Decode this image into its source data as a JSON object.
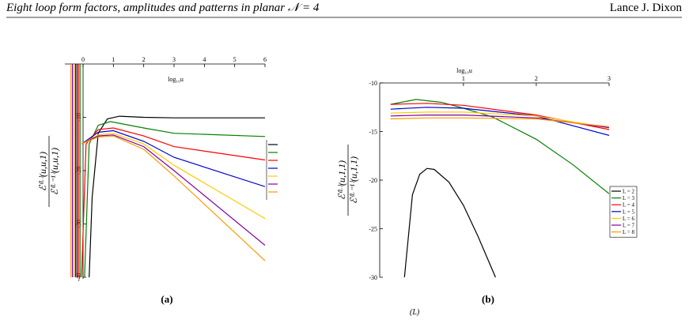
{
  "header": {
    "title": "Eight loop form factors, amplitudes and patterns in planar 𝒩 = 4",
    "author": "Lance J. Dixon"
  },
  "chart_data": [
    {
      "type": "line",
      "panel_label": "(a)",
      "xlabel": "log₁₀u",
      "ylabel": {
        "numerator": "ℰ⁽ᴸ⁾(u,u,1)",
        "denominator": "ℰ⁽ᴸ⁻¹⁾(u,u,1)"
      },
      "xlim": [
        -0.6,
        6
      ],
      "ylim": [
        -40.3,
        0
      ],
      "xticks": [
        0,
        1,
        2,
        3,
        4,
        5,
        6
      ],
      "yticks": [
        -10,
        -20,
        -30,
        -40
      ],
      "series": [
        {
          "color": "#000000",
          "x": [
            -0.2,
            -0.2,
            null,
            0.2,
            0.3,
            0.5,
            0.8,
            1.2,
            2,
            3,
            6
          ],
          "values": [
            0,
            -40,
            null,
            -40,
            -25,
            -13,
            -10.3,
            -9.8,
            -10.0,
            -10.1,
            -10.1
          ]
        },
        {
          "color": "#008000",
          "x": [
            -0.1,
            -0.1,
            null,
            0.05,
            0.2,
            0.5,
            0.9,
            2,
            3,
            6
          ],
          "values": [
            0,
            -40,
            null,
            -40,
            -15,
            -11.5,
            -10.8,
            -12.0,
            -13.0,
            -13.6
          ]
        },
        {
          "color": "#ff0000",
          "x": [
            -0.15,
            -0.15,
            null,
            -0.05,
            0.1,
            0.5,
            1,
            2,
            3,
            6
          ],
          "values": [
            0,
            -40,
            null,
            -40,
            -15,
            -12.3,
            -12.0,
            -13.5,
            -15.5,
            -18.0
          ]
        },
        {
          "color": "#0000cc",
          "x": [
            -0.25,
            -0.25,
            null,
            -0.05,
            0.5,
            1,
            2,
            3,
            6
          ],
          "values": [
            0,
            -40,
            null,
            -15,
            -12.8,
            -12.5,
            -14.5,
            -17.5,
            -23.0
          ]
        },
        {
          "color": "#ffcc00",
          "x": [
            -0.3,
            -0.3,
            null,
            -0.05,
            0.5,
            1,
            2,
            3,
            6
          ],
          "values": [
            0,
            -40,
            null,
            -15,
            -13.3,
            -13.0,
            -15.0,
            -19.0,
            -29.0
          ]
        },
        {
          "color": "#8000a0",
          "x": [
            -0.35,
            -0.35,
            null,
            -0.05,
            0.5,
            1,
            2,
            3,
            6
          ],
          "values": [
            0,
            -40,
            null,
            -15,
            -13.5,
            -13.3,
            -15.5,
            -20.0,
            -34.0
          ]
        },
        {
          "color": "#ff9900",
          "x": [
            -0.4,
            -0.4,
            null,
            -0.05,
            0.5,
            1,
            2,
            3,
            6
          ],
          "values": [
            0,
            -40,
            null,
            -15,
            -13.7,
            -13.5,
            -16.0,
            -21.0,
            -36.9
          ]
        }
      ]
    },
    {
      "type": "line",
      "panel_label": "(b)",
      "xlabel": "log₁₀u",
      "ylabel": {
        "numerator": "ℰ⁽ᴸ⁾(u,1,1)",
        "denominator": "ℰ⁽ᴸ⁻¹⁾(u,1,1)"
      },
      "xlim": [
        -0.15,
        3
      ],
      "ylim": [
        -30,
        -10
      ],
      "xticks": [
        1,
        2,
        3
      ],
      "yticks": [
        -10,
        -15,
        -20,
        -25,
        -30
      ],
      "series": [
        {
          "name": "L = 2",
          "color": "#000000",
          "x": [
            0.19,
            0.3,
            0.4,
            0.5,
            0.6,
            0.8,
            1.0,
            1.2,
            1.44
          ],
          "values": [
            -30,
            -21.5,
            -19.4,
            -18.8,
            -18.9,
            -20.2,
            -22.6,
            -25.8,
            -30
          ]
        },
        {
          "name": "L = 3",
          "color": "#008000",
          "x": [
            0,
            0.35,
            0.7,
            1.0,
            1.4,
            2.0,
            2.5,
            3
          ],
          "values": [
            -12.2,
            -11.7,
            -12.0,
            -12.6,
            -13.5,
            -15.8,
            -18.4,
            -21.4
          ]
        },
        {
          "name": "L = 4",
          "color": "#ff0000",
          "x": [
            0,
            0.5,
            1,
            2,
            3
          ],
          "values": [
            -12.2,
            -12.1,
            -12.3,
            -13.3,
            -14.8
          ]
        },
        {
          "name": "L = 5",
          "color": "#0000cc",
          "x": [
            0,
            0.5,
            1,
            2,
            3
          ],
          "values": [
            -12.7,
            -12.5,
            -12.6,
            -13.4,
            -15.4
          ]
        },
        {
          "name": "L = 6",
          "color": "#ffcc00",
          "x": [
            0,
            0.5,
            1,
            2,
            3
          ],
          "values": [
            -13.1,
            -13.0,
            -13.0,
            -13.4,
            -14.6
          ]
        },
        {
          "name": "L = 7",
          "color": "#8000a0",
          "x": [
            0,
            0.5,
            1,
            2,
            3
          ],
          "values": [
            -13.4,
            -13.3,
            -13.3,
            -13.6,
            -14.6
          ]
        },
        {
          "name": "L = 8",
          "color": "#ff9900",
          "x": [
            0,
            0.5,
            1,
            2,
            3
          ],
          "values": [
            -13.7,
            -13.6,
            -13.6,
            -13.7,
            -14.5
          ]
        }
      ]
    }
  ],
  "caption_fragment": "(L)"
}
